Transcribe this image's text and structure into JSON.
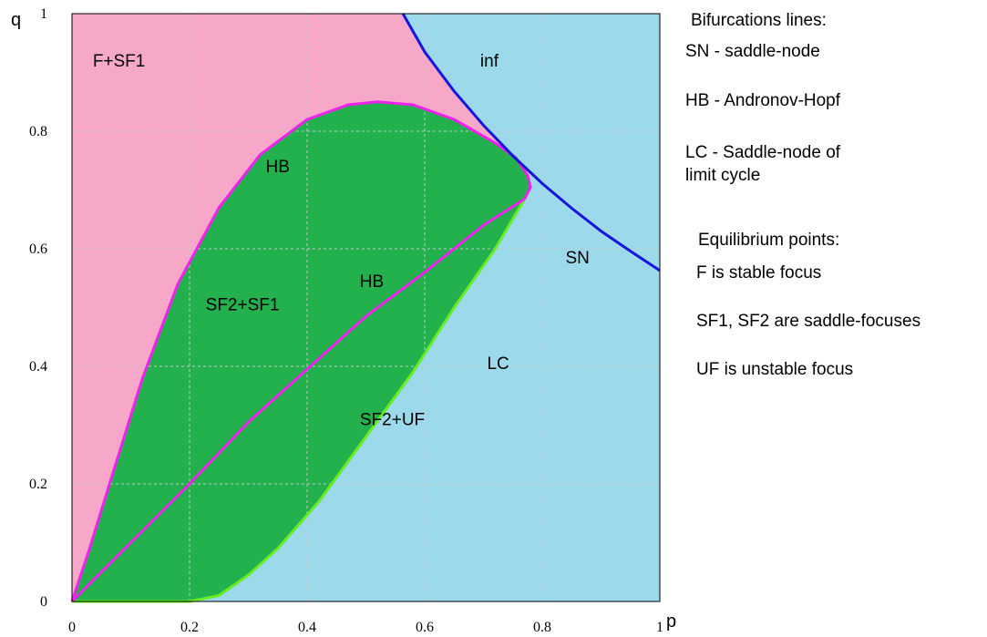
{
  "chart_data": {
    "type": "area",
    "xlabel": "p",
    "ylabel": "q",
    "xlim": [
      0,
      1
    ],
    "ylim": [
      0,
      1
    ],
    "x_ticks": [
      "0",
      "0.2",
      "0.4",
      "0.6",
      "0.8",
      "1"
    ],
    "y_ticks": [
      "0",
      "0.2",
      "0.4",
      "0.6",
      "0.8",
      "1"
    ],
    "grid": true,
    "colors": {
      "region_F_SF1": "#f7a8c8",
      "region_inf": "#9cd9ea",
      "region_SF2": "#22b14c",
      "HB_line": "#ee22ee",
      "LC_line": "#66ee22",
      "SN_line": "#1515dd"
    },
    "curves": {
      "SN": [
        [
          0.563,
          1.0
        ],
        [
          0.6,
          0.935
        ],
        [
          0.65,
          0.868
        ],
        [
          0.7,
          0.81
        ],
        [
          0.75,
          0.758
        ],
        [
          0.8,
          0.711
        ],
        [
          0.85,
          0.669
        ],
        [
          0.9,
          0.63
        ],
        [
          0.95,
          0.596
        ],
        [
          1.0,
          0.563
        ]
      ],
      "HB_outer": [
        [
          0.0,
          0.0
        ],
        [
          0.03,
          0.09
        ],
        [
          0.07,
          0.22
        ],
        [
          0.12,
          0.38
        ],
        [
          0.18,
          0.54
        ],
        [
          0.25,
          0.67
        ],
        [
          0.32,
          0.76
        ],
        [
          0.4,
          0.82
        ],
        [
          0.47,
          0.845
        ],
        [
          0.52,
          0.85
        ],
        [
          0.58,
          0.845
        ],
        [
          0.65,
          0.82
        ],
        [
          0.72,
          0.78
        ],
        [
          0.755,
          0.755
        ],
        [
          0.775,
          0.725
        ],
        [
          0.78,
          0.705
        ],
        [
          0.77,
          0.685
        ]
      ],
      "HB_inner": [
        [
          0.0,
          0.0
        ],
        [
          0.1,
          0.1
        ],
        [
          0.2,
          0.2
        ],
        [
          0.3,
          0.305
        ],
        [
          0.4,
          0.395
        ],
        [
          0.5,
          0.485
        ],
        [
          0.6,
          0.56
        ],
        [
          0.7,
          0.64
        ],
        [
          0.77,
          0.685
        ]
      ],
      "LC": [
        [
          0.77,
          0.685
        ],
        [
          0.72,
          0.6
        ],
        [
          0.65,
          0.5
        ],
        [
          0.58,
          0.39
        ],
        [
          0.5,
          0.28
        ],
        [
          0.42,
          0.17
        ],
        [
          0.35,
          0.09
        ],
        [
          0.3,
          0.045
        ],
        [
          0.25,
          0.01
        ],
        [
          0.2,
          0.0
        ],
        [
          0.1,
          0.0
        ],
        [
          0.04,
          0.0
        ],
        [
          0.0,
          0.0
        ]
      ]
    },
    "region_labels": [
      {
        "text": "F+SF1",
        "p": 0.08,
        "q": 0.91
      },
      {
        "text": "inf",
        "p": 0.71,
        "q": 0.91
      },
      {
        "text": "HB",
        "p": 0.35,
        "q": 0.73
      },
      {
        "text": "SN",
        "p": 0.86,
        "q": 0.575
      },
      {
        "text": "HB",
        "p": 0.51,
        "q": 0.535
      },
      {
        "text": "SF2+SF1",
        "p": 0.29,
        "q": 0.495
      },
      {
        "text": "LC",
        "p": 0.725,
        "q": 0.395
      },
      {
        "text": "SF2+UF",
        "p": 0.545,
        "q": 0.3
      }
    ]
  },
  "legend": {
    "bifurcations_title": "Bifurcations lines:",
    "sn": "SN - saddle-node",
    "hb": "HB - Andronov-Hopf",
    "lc_line1": "LC - Saddle-node of",
    "lc_line2": "limit cycle",
    "equilibrium_title": "Equilibrium points:",
    "f": "F is stable focus",
    "sf": "SF1, SF2 are saddle-focuses",
    "uf": "UF is unstable focus"
  }
}
